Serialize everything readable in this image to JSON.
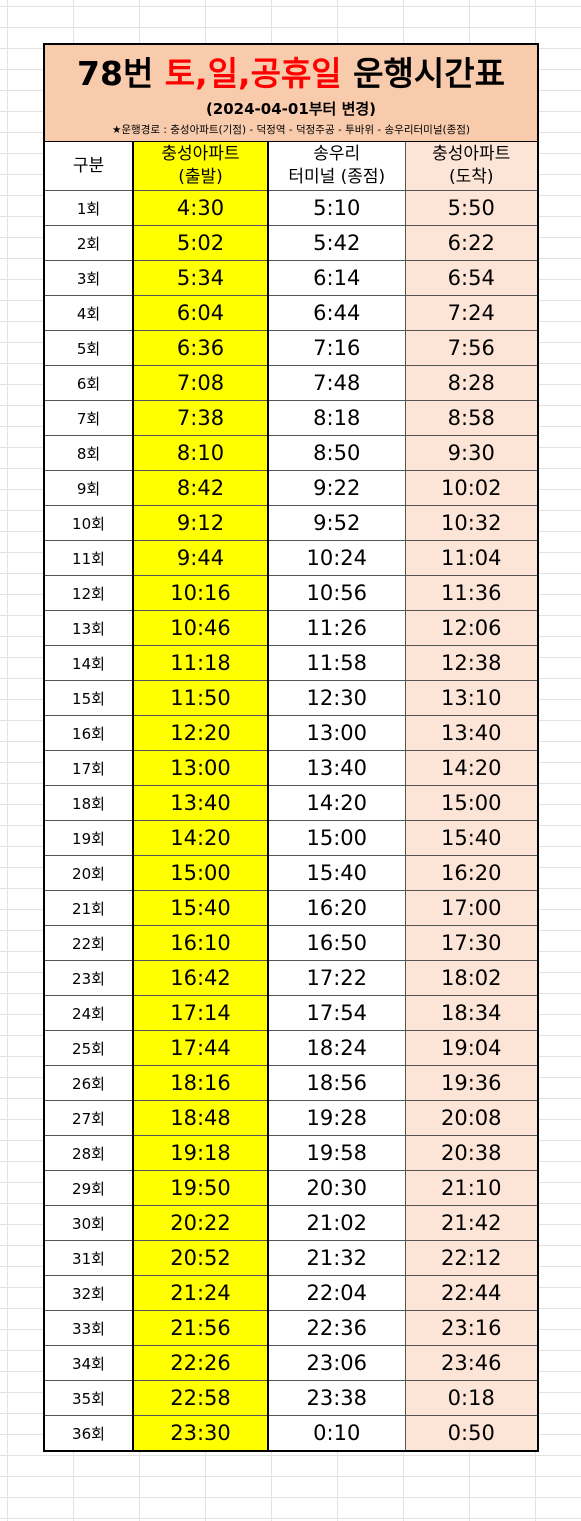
{
  "title": {
    "prefix": "78번 ",
    "highlight": "토,일,공휴일",
    "suffix": " 운행시간표"
  },
  "subtitle": "(2024-04-01부터 변경)",
  "route": "★운행경로 : 충성아파트(기점) - 덕정역 - 덕정주공 - 투바위 - 송우리터미널(종점)",
  "colors": {
    "title_bg": "#f8cbad",
    "title_highlight": "#ff0000",
    "departure_bg": "#ffff00",
    "arrival_bg": "#fce4d6"
  },
  "headers": {
    "no": "구분",
    "departure_line1": "충성아파트",
    "departure_line2": "(출발)",
    "terminal_line1": "송우리",
    "terminal_line2": "터미널 (종점)",
    "arrival_line1": "충성아파트",
    "arrival_line2": "(도착)"
  },
  "rows": [
    [
      "1회",
      "4:30",
      "5:10",
      "5:50"
    ],
    [
      "2회",
      "5:02",
      "5:42",
      "6:22"
    ],
    [
      "3회",
      "5:34",
      "6:14",
      "6:54"
    ],
    [
      "4회",
      "6:04",
      "6:44",
      "7:24"
    ],
    [
      "5회",
      "6:36",
      "7:16",
      "7:56"
    ],
    [
      "6회",
      "7:08",
      "7:48",
      "8:28"
    ],
    [
      "7회",
      "7:38",
      "8:18",
      "8:58"
    ],
    [
      "8회",
      "8:10",
      "8:50",
      "9:30"
    ],
    [
      "9회",
      "8:42",
      "9:22",
      "10:02"
    ],
    [
      "10회",
      "9:12",
      "9:52",
      "10:32"
    ],
    [
      "11회",
      "9:44",
      "10:24",
      "11:04"
    ],
    [
      "12회",
      "10:16",
      "10:56",
      "11:36"
    ],
    [
      "13회",
      "10:46",
      "11:26",
      "12:06"
    ],
    [
      "14회",
      "11:18",
      "11:58",
      "12:38"
    ],
    [
      "15회",
      "11:50",
      "12:30",
      "13:10"
    ],
    [
      "16회",
      "12:20",
      "13:00",
      "13:40"
    ],
    [
      "17회",
      "13:00",
      "13:40",
      "14:20"
    ],
    [
      "18회",
      "13:40",
      "14:20",
      "15:00"
    ],
    [
      "19회",
      "14:20",
      "15:00",
      "15:40"
    ],
    [
      "20회",
      "15:00",
      "15:40",
      "16:20"
    ],
    [
      "21회",
      "15:40",
      "16:20",
      "17:00"
    ],
    [
      "22회",
      "16:10",
      "16:50",
      "17:30"
    ],
    [
      "23회",
      "16:42",
      "17:22",
      "18:02"
    ],
    [
      "24회",
      "17:14",
      "17:54",
      "18:34"
    ],
    [
      "25회",
      "17:44",
      "18:24",
      "19:04"
    ],
    [
      "26회",
      "18:16",
      "18:56",
      "19:36"
    ],
    [
      "27회",
      "18:48",
      "19:28",
      "20:08"
    ],
    [
      "28회",
      "19:18",
      "19:58",
      "20:38"
    ],
    [
      "29회",
      "19:50",
      "20:30",
      "21:10"
    ],
    [
      "30회",
      "20:22",
      "21:02",
      "21:42"
    ],
    [
      "31회",
      "20:52",
      "21:32",
      "22:12"
    ],
    [
      "32회",
      "21:24",
      "22:04",
      "22:44"
    ],
    [
      "33회",
      "21:56",
      "22:36",
      "23:16"
    ],
    [
      "34회",
      "22:26",
      "23:06",
      "23:46"
    ],
    [
      "35회",
      "22:58",
      "23:38",
      "0:18"
    ],
    [
      "36회",
      "23:30",
      "0:10",
      "0:50"
    ]
  ]
}
